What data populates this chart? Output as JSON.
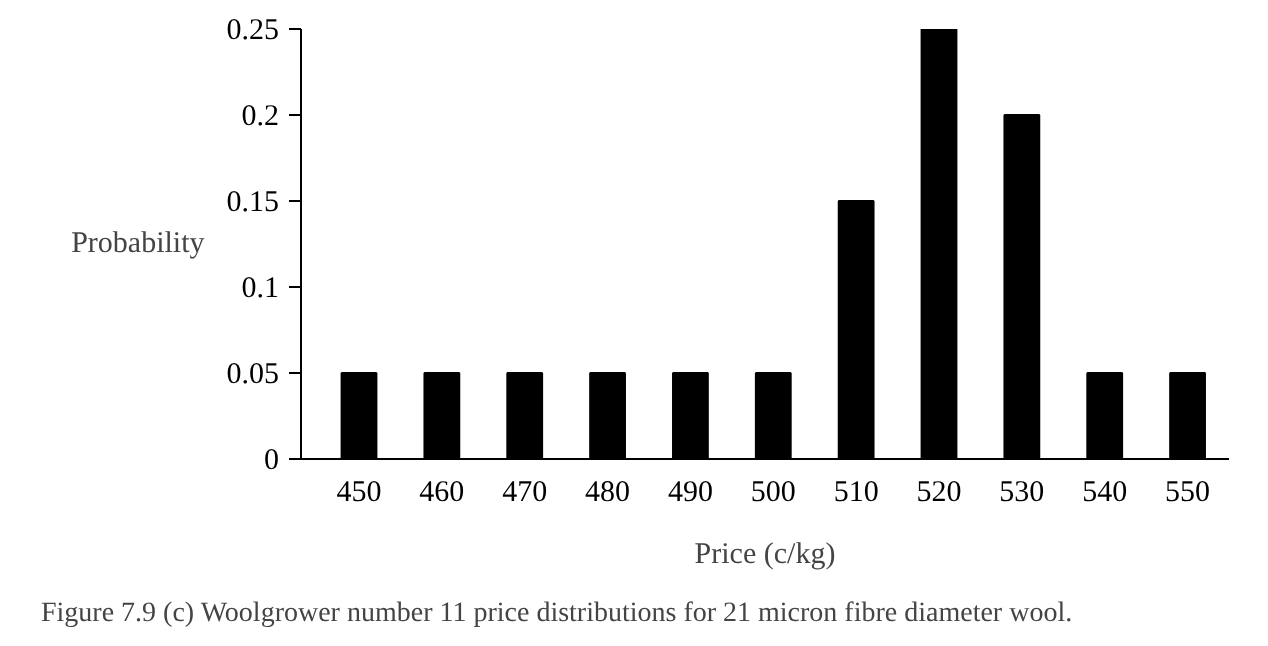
{
  "chart_data": {
    "type": "bar",
    "categories": [
      "450",
      "460",
      "470",
      "480",
      "490",
      "500",
      "510",
      "520",
      "530",
      "540",
      "550"
    ],
    "values": [
      0.05,
      0.05,
      0.05,
      0.05,
      0.05,
      0.05,
      0.15,
      0.25,
      0.2,
      0.05,
      0.05
    ],
    "color": "#000000",
    "xlabel": "Price (c/kg)",
    "ylabel": "Probability",
    "ylim": [
      0,
      0.25
    ],
    "yticks": [
      0,
      0.05,
      0.1,
      0.15,
      0.2,
      0.25
    ],
    "grid": false,
    "annotations": [
      "Figure 7.9 (c) Woolgrower number 11 price distributions for 21 micron fibre diameter wool."
    ]
  }
}
